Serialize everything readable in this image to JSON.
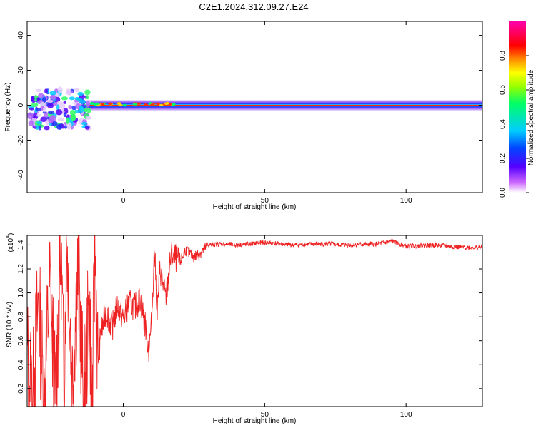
{
  "title": "C2E1.2024.312.09.27.E24",
  "chart_data": [
    {
      "type": "heatmap",
      "xlabel": "Height of straight line (km)",
      "ylabel": "Frequency (Hz)",
      "xlim": [
        -34,
        127
      ],
      "ylim": [
        -50,
        48
      ],
      "xticks": [
        0,
        50,
        100
      ],
      "yticks": [
        -40,
        -20,
        0,
        20,
        40
      ],
      "colorbar": {
        "label": "Normalized spectral amplitude",
        "range": [
          0,
          1
        ],
        "ticks": [
          "0.0",
          "0.2",
          "0.4",
          "0.6",
          "0.8"
        ],
        "colors": [
          "#ffffff",
          "#cc66ff",
          "#5500ff",
          "#0044ff",
          "#00ccff",
          "#00ff66",
          "#99ff00",
          "#ffff00",
          "#ff8800",
          "#ff0000",
          "#ff0066",
          "#ff00aa"
        ]
      },
      "ridge": {
        "x_start": -13,
        "x_end": 127,
        "freq": 0,
        "half_width_hz": 3
      }
    },
    {
      "type": "line",
      "xlabel": "Height of straight line (km)",
      "ylabel": "SNR (10 * v/v)",
      "multiplier": "(x10",
      "multiplier_exp": "4",
      "xlim": [
        -34,
        127
      ],
      "ylim": [
        0.05,
        1.48
      ],
      "xticks": [
        0,
        50,
        100
      ],
      "yticks": [
        0.2,
        0.4,
        0.6,
        0.8,
        1.0,
        1.2,
        1.4
      ],
      "color": "#ee2222",
      "points": [
        [
          -34,
          0.5
        ],
        [
          -32,
          0.12
        ],
        [
          -30,
          0.95
        ],
        [
          -28,
          0.1
        ],
        [
          -26,
          1.1
        ],
        [
          -24,
          0.08
        ],
        [
          -22,
          1.4
        ],
        [
          -21,
          0.2
        ],
        [
          -20,
          1.48
        ],
        [
          -18,
          0.3
        ],
        [
          -16,
          1.2
        ],
        [
          -14,
          0.1
        ],
        [
          -12,
          0.9
        ],
        [
          -11,
          0.05
        ],
        [
          -10,
          1.42
        ],
        [
          -9,
          0.4
        ],
        [
          -8,
          0.65
        ],
        [
          -6,
          0.85
        ],
        [
          -4,
          0.7
        ],
        [
          -2,
          0.9
        ],
        [
          0,
          0.78
        ],
        [
          2,
          0.92
        ],
        [
          4,
          0.88
        ],
        [
          6,
          0.95
        ],
        [
          8,
          0.7
        ],
        [
          9,
          0.52
        ],
        [
          10,
          0.75
        ],
        [
          11,
          1.38
        ],
        [
          12,
          0.85
        ],
        [
          13,
          1.2
        ],
        [
          15,
          0.95
        ],
        [
          17,
          1.33
        ],
        [
          20,
          1.25
        ],
        [
          22,
          1.36
        ],
        [
          25,
          1.3
        ],
        [
          28,
          1.35
        ],
        [
          30,
          1.4
        ],
        [
          35,
          1.41
        ],
        [
          40,
          1.4
        ],
        [
          50,
          1.42
        ],
        [
          60,
          1.4
        ],
        [
          70,
          1.41
        ],
        [
          80,
          1.4
        ],
        [
          90,
          1.41
        ],
        [
          95,
          1.43
        ],
        [
          100,
          1.39
        ],
        [
          110,
          1.4
        ],
        [
          120,
          1.38
        ],
        [
          127,
          1.38
        ]
      ]
    }
  ]
}
